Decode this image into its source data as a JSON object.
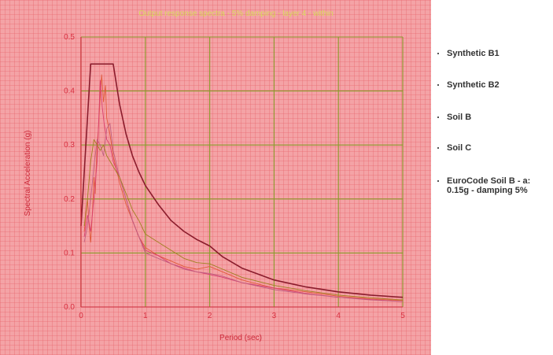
{
  "chart_data": {
    "type": "line",
    "title": "Output response spectra - 5% damping - layer 4 - within",
    "xlabel": "Period (sec)",
    "ylabel": "Spectral Acceleration (g)",
    "xlim": [
      0,
      5
    ],
    "ylim": [
      0,
      0.5
    ],
    "x_ticks": [
      0,
      1,
      2,
      3,
      4,
      5
    ],
    "y_ticks": [
      0.0,
      0.1,
      0.2,
      0.3,
      0.4,
      0.5
    ],
    "y_tick_labels": [
      "0.0",
      "0.1",
      "0.2",
      "0.3",
      "0.4",
      "0.5"
    ],
    "grid": true,
    "legend_position": "right",
    "series": [
      {
        "name": "Synthetic B1",
        "color": "#e05a3a",
        "points": [
          [
            0.05,
            0.14
          ],
          [
            0.1,
            0.2
          ],
          [
            0.12,
            0.16
          ],
          [
            0.15,
            0.12
          ],
          [
            0.18,
            0.18
          ],
          [
            0.2,
            0.24
          ],
          [
            0.22,
            0.21
          ],
          [
            0.25,
            0.3
          ],
          [
            0.27,
            0.33
          ],
          [
            0.3,
            0.39
          ],
          [
            0.32,
            0.43
          ],
          [
            0.35,
            0.38
          ],
          [
            0.38,
            0.41
          ],
          [
            0.4,
            0.35
          ],
          [
            0.45,
            0.32
          ],
          [
            0.5,
            0.28
          ],
          [
            0.6,
            0.23
          ],
          [
            0.7,
            0.19
          ],
          [
            0.8,
            0.16
          ],
          [
            0.9,
            0.13
          ],
          [
            1.0,
            0.11
          ],
          [
            1.2,
            0.095
          ],
          [
            1.4,
            0.085
          ],
          [
            1.6,
            0.075
          ],
          [
            1.8,
            0.07
          ],
          [
            2.0,
            0.075
          ],
          [
            2.2,
            0.065
          ],
          [
            2.5,
            0.05
          ],
          [
            3.0,
            0.035
          ],
          [
            3.5,
            0.028
          ],
          [
            4.0,
            0.02
          ],
          [
            4.5,
            0.015
          ],
          [
            5.0,
            0.012
          ]
        ]
      },
      {
        "name": "Synthetic B2",
        "color": "#d94070",
        "points": [
          [
            0.05,
            0.13
          ],
          [
            0.1,
            0.17
          ],
          [
            0.15,
            0.14
          ],
          [
            0.2,
            0.2
          ],
          [
            0.25,
            0.27
          ],
          [
            0.28,
            0.36
          ],
          [
            0.3,
            0.42
          ],
          [
            0.33,
            0.37
          ],
          [
            0.36,
            0.34
          ],
          [
            0.4,
            0.31
          ],
          [
            0.45,
            0.3
          ],
          [
            0.5,
            0.27
          ],
          [
            0.6,
            0.24
          ],
          [
            0.7,
            0.2
          ],
          [
            0.8,
            0.16
          ],
          [
            0.9,
            0.13
          ],
          [
            1.0,
            0.105
          ],
          [
            1.2,
            0.095
          ],
          [
            1.4,
            0.08
          ],
          [
            1.6,
            0.072
          ],
          [
            1.8,
            0.065
          ],
          [
            2.0,
            0.06
          ],
          [
            2.2,
            0.055
          ],
          [
            2.5,
            0.045
          ],
          [
            3.0,
            0.035
          ],
          [
            3.5,
            0.025
          ],
          [
            4.0,
            0.018
          ],
          [
            4.5,
            0.014
          ],
          [
            5.0,
            0.01
          ]
        ]
      },
      {
        "name": "Soil B",
        "color": "#c06080",
        "points": [
          [
            0.05,
            0.12
          ],
          [
            0.1,
            0.15
          ],
          [
            0.15,
            0.2
          ],
          [
            0.2,
            0.26
          ],
          [
            0.25,
            0.31
          ],
          [
            0.3,
            0.3
          ],
          [
            0.35,
            0.28
          ],
          [
            0.4,
            0.33
          ],
          [
            0.45,
            0.34
          ],
          [
            0.5,
            0.29
          ],
          [
            0.6,
            0.24
          ],
          [
            0.7,
            0.2
          ],
          [
            0.8,
            0.16
          ],
          [
            0.9,
            0.13
          ],
          [
            1.0,
            0.1
          ],
          [
            1.2,
            0.09
          ],
          [
            1.4,
            0.08
          ],
          [
            1.6,
            0.07
          ],
          [
            1.8,
            0.065
          ],
          [
            2.0,
            0.062
          ],
          [
            2.2,
            0.057
          ],
          [
            2.5,
            0.045
          ],
          [
            3.0,
            0.032
          ],
          [
            3.5,
            0.024
          ],
          [
            4.0,
            0.018
          ],
          [
            4.5,
            0.013
          ],
          [
            5.0,
            0.01
          ]
        ]
      },
      {
        "name": "Soil C",
        "color": "#a08020",
        "points": [
          [
            0.05,
            0.15
          ],
          [
            0.1,
            0.2
          ],
          [
            0.15,
            0.27
          ],
          [
            0.2,
            0.31
          ],
          [
            0.25,
            0.3
          ],
          [
            0.3,
            0.29
          ],
          [
            0.35,
            0.3
          ],
          [
            0.4,
            0.28
          ],
          [
            0.5,
            0.26
          ],
          [
            0.6,
            0.24
          ],
          [
            0.7,
            0.21
          ],
          [
            0.8,
            0.18
          ],
          [
            0.9,
            0.16
          ],
          [
            1.0,
            0.135
          ],
          [
            1.2,
            0.12
          ],
          [
            1.4,
            0.105
          ],
          [
            1.6,
            0.09
          ],
          [
            1.8,
            0.082
          ],
          [
            2.0,
            0.08
          ],
          [
            2.2,
            0.07
          ],
          [
            2.5,
            0.055
          ],
          [
            3.0,
            0.04
          ],
          [
            3.5,
            0.03
          ],
          [
            4.0,
            0.022
          ],
          [
            4.5,
            0.017
          ],
          [
            5.0,
            0.013
          ]
        ]
      },
      {
        "name": "EuroCode Soil B - a: 0.15g - damping 5%",
        "color": "#8a1c2c",
        "points": [
          [
            0.0,
            0.15
          ],
          [
            0.15,
            0.45
          ],
          [
            0.5,
            0.45
          ],
          [
            0.6,
            0.375
          ],
          [
            0.7,
            0.32
          ],
          [
            0.8,
            0.28
          ],
          [
            0.9,
            0.25
          ],
          [
            1.0,
            0.225
          ],
          [
            1.2,
            0.19
          ],
          [
            1.4,
            0.16
          ],
          [
            1.6,
            0.14
          ],
          [
            1.8,
            0.125
          ],
          [
            2.0,
            0.113
          ],
          [
            2.2,
            0.093
          ],
          [
            2.5,
            0.072
          ],
          [
            3.0,
            0.05
          ],
          [
            3.5,
            0.037
          ],
          [
            4.0,
            0.028
          ],
          [
            4.5,
            0.022
          ],
          [
            5.0,
            0.018
          ]
        ]
      }
    ]
  }
}
